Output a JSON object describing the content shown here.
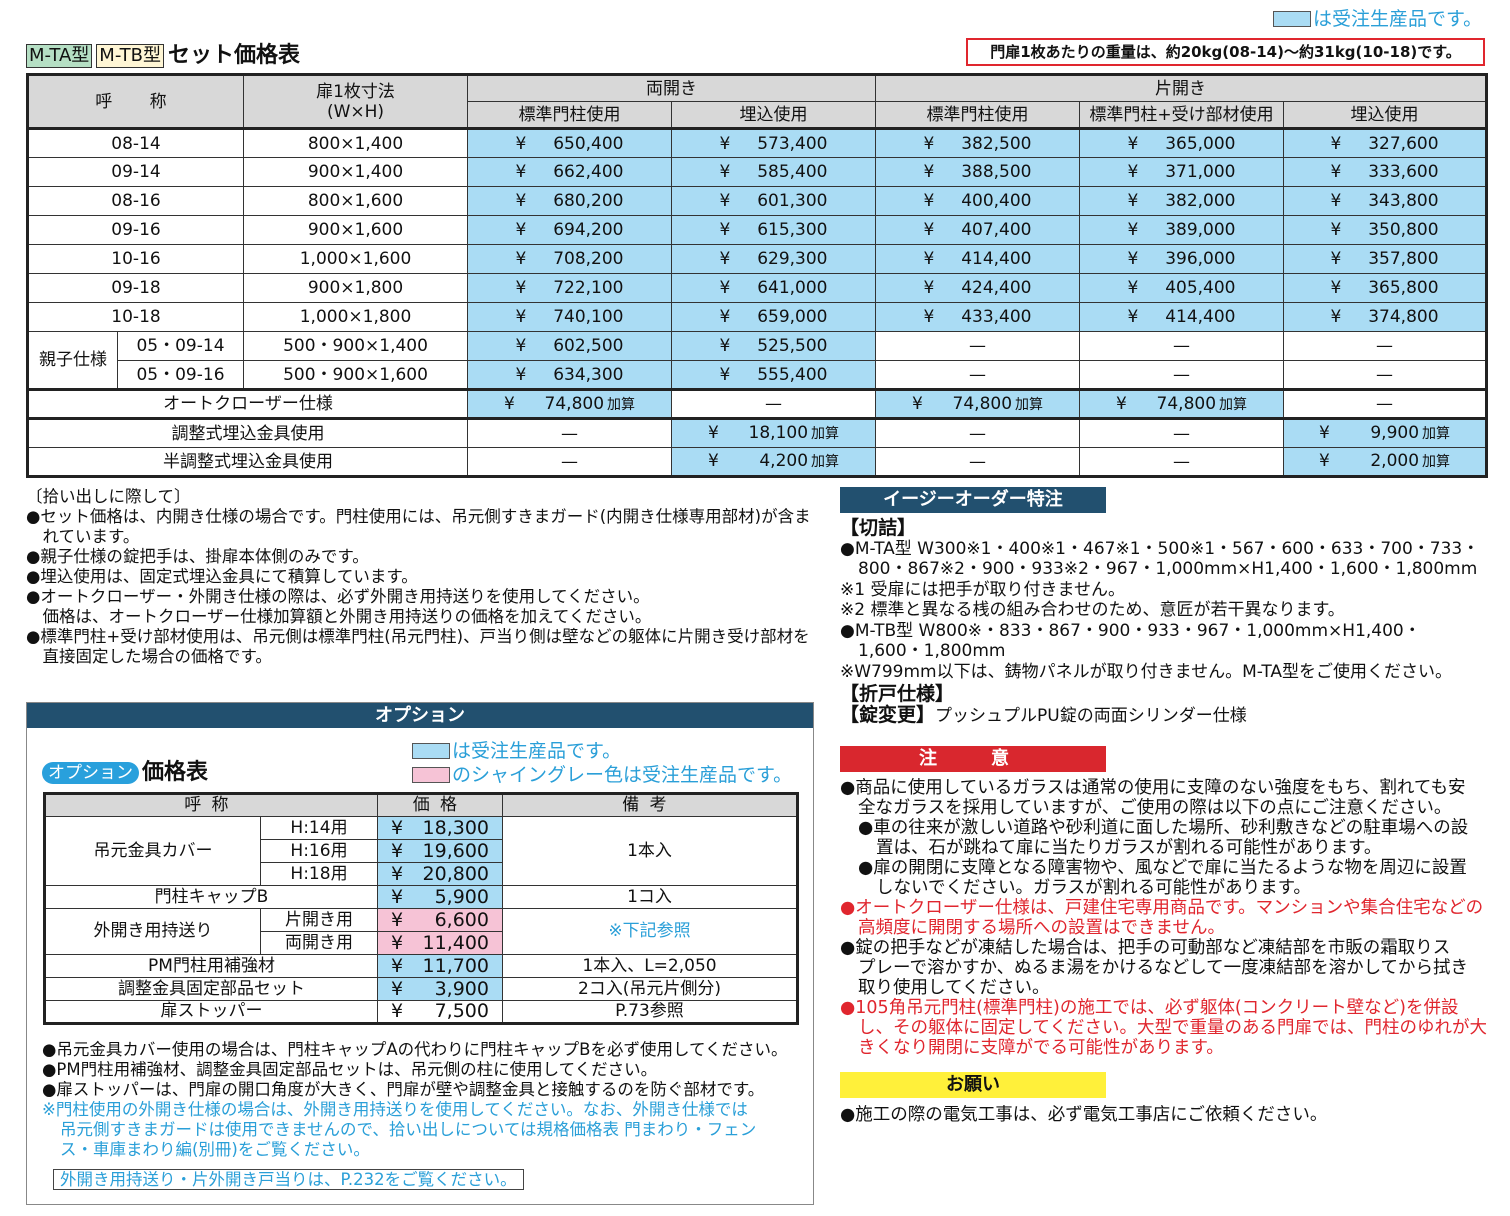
{
  "top_legend": {
    "text": "は受注生産品です。",
    "color": "#aadcf4"
  },
  "title": {
    "badge_a": "M-TA型",
    "badge_b": "M-TB型",
    "text": "セット価格表",
    "badge_a_color": "#b5dfc4",
    "badge_b_color": "#fff6d5"
  },
  "weight_note": "門扉1枚あたりの重量は、約20kg(08-14)～約31kg(10-18)です。",
  "set_table": {
    "headers": {
      "name": "呼　称",
      "size_line1": "扉1枚寸法",
      "size_line2": "(W×H)",
      "double": "両開き",
      "single": "片開き",
      "cols": [
        "標準門柱使用",
        "埋込使用",
        "標準門柱使用",
        "標準門柱+受け部材使用",
        "埋込使用"
      ]
    },
    "rows": [
      {
        "name": "08-14",
        "size": "800×1,400",
        "prices": [
          "650,400",
          "573,400",
          "382,500",
          "365,000",
          "327,600"
        ]
      },
      {
        "name": "09-14",
        "size": "900×1,400",
        "prices": [
          "662,400",
          "585,400",
          "388,500",
          "371,000",
          "333,600"
        ]
      },
      {
        "name": "08-16",
        "size": "800×1,600",
        "prices": [
          "680,200",
          "601,300",
          "400,400",
          "382,000",
          "343,800"
        ]
      },
      {
        "name": "09-16",
        "size": "900×1,600",
        "prices": [
          "694,200",
          "615,300",
          "407,400",
          "389,000",
          "350,800"
        ]
      },
      {
        "name": "10-16",
        "size": "1,000×1,600",
        "prices": [
          "708,200",
          "629,300",
          "414,400",
          "396,000",
          "357,800"
        ]
      },
      {
        "name": "09-18",
        "size": "900×1,800",
        "prices": [
          "722,100",
          "641,000",
          "424,400",
          "405,400",
          "365,800"
        ]
      },
      {
        "name": "10-18",
        "size": "1,000×1,800",
        "prices": [
          "740,100",
          "659,000",
          "433,400",
          "414,400",
          "374,800"
        ]
      }
    ],
    "oyako": {
      "label": "親子仕様",
      "rows": [
        {
          "name": "05・09-14",
          "size": "500・900×1,400",
          "prices": [
            "602,500",
            "525,500",
            "—",
            "—",
            "—"
          ]
        },
        {
          "name": "05・09-16",
          "size": "500・900×1,600",
          "prices": [
            "634,300",
            "555,400",
            "—",
            "—",
            "—"
          ]
        }
      ]
    },
    "extras": [
      {
        "label": "オートクローザー仕様",
        "prices": [
          "74,800",
          "—",
          "74,800",
          "74,800",
          "—"
        ]
      },
      {
        "label": "調整式埋込金具使用",
        "prices": [
          "—",
          "18,100",
          "—",
          "—",
          "9,900"
        ]
      },
      {
        "label": "半調整式埋込金具使用",
        "prices": [
          "—",
          "4,200",
          "—",
          "—",
          "2,000"
        ]
      }
    ],
    "yen": "¥",
    "add_label": "加算",
    "dash": "—"
  },
  "notes_left": {
    "heading": "〔拾い出しに際して〕",
    "items": [
      "●セット価格は、内開き仕様の場合です。門柱使用には、吊元側すきまガード(内開き仕様専用部材)が含まれています。",
      "●親子仕様の錠把手は、掛扉本体側のみです。",
      "●埋込使用は、固定式埋込金具にて積算しています。",
      "●オートクローザー・外開き仕様の際は、必ず外開き用持送りを使用してください。",
      "　価格は、オートクローザー仕様加算額と外開き用持送りの価格を加えてください。",
      "●標準門柱+受け部材使用は、吊元側は標準門柱(吊元門柱)、戸当り側は壁などの躯体に片開き受け部材を直接固定した場合の価格です。"
    ]
  },
  "easy_order": {
    "title": "イージーオーダー特注",
    "kiritsume": "【切詰】",
    "ta_line1": "●M-TA型 W300※1・400※1・467※1・500※1・567・600・633・700・733・",
    "ta_line2": "800・867※2・900・933※2・967・1,000mm×H1,400・1,600・1,800mm",
    "note1": "※1 受扉には把手が取り付きません。",
    "note2": "※2 標準と異なる桟の組み合わせのため、意匠が若干異なります。",
    "tb_line1": "●M-TB型 W800※・833・867・900・933・967・1,000mm×H1,400・",
    "tb_line2": "1,600・1,800mm",
    "note3": "※W799mm以下は、鋳物パネルが取り付きません。M-TA型をご使用ください。",
    "oredo": "【折戸仕様】",
    "lock_head": "【錠変更】",
    "lock_text": "プッシュプルPU錠の両面シリンダー仕様"
  },
  "caution": {
    "title": "注　意",
    "color": "#d9272e",
    "l1": "●商品に使用しているガラスは通常の使用に支障のない強度をもち、割れても安",
    "l2": "全なガラスを採用していますが、ご使用の際は以下の点にご注意ください。",
    "l3": "●車の往来が激しい道路や砂利道に面した場所、砂利敷きなどの駐車場への設",
    "l4": "置は、石が跳ねて扉に当たりガラスが割れる可能性があります。",
    "l5": "●扉の開閉に支障となる障害物や、風などで扉に当たるような物を周辺に設置",
    "l6": "しないでください。ガラスが割れる可能性があります。",
    "r1": "●オートクローザー仕様は、戸建住宅専用商品です。マンションや集合住宅などの",
    "r2": "高頻度に開閉する場所への設置はできません。",
    "l7": "●錠の把手などが凍結した場合は、把手の可動部など凍結部を市販の霜取りス",
    "l8": "プレーで溶かすか、ぬるま湯をかけるなどして一度凍結部を溶かしてから拭き",
    "l9": "取り使用してください。",
    "r3": "●105角吊元門柱(標準門柱)の施工では、必ず躯体(コンクリート壁など)を併設",
    "r4": "し、その躯体に固定してください。大型で重量のある門扉では、門柱のゆれが大",
    "r5": "きくなり開閉に支障がでる可能性があります。"
  },
  "request": {
    "title": "お願い",
    "color": "#fff03a",
    "text": "●施工の際の電気工事は、必ず電気工事店にご依頼ください。"
  },
  "option": {
    "header": "オプション",
    "badge": "オプション",
    "title": "価格表",
    "legend_blue": "は受注生産品です。",
    "legend_pink": "のシャイングレー色は受注生産品です。",
    "pink_color": "#f6c3d6",
    "cols": [
      "呼称",
      "価格",
      "備考"
    ],
    "cover": {
      "name": "吊元金具カバー",
      "subs": [
        "H:14用",
        "H:16用",
        "H:18用"
      ],
      "prices": [
        "18,300",
        "19,600",
        "20,800"
      ],
      "remark": "1本入"
    },
    "cap": {
      "name": "門柱キャップB",
      "price": "5,900",
      "remark": "1コ入"
    },
    "bracket": {
      "name": "外開き用持送り",
      "subs": [
        "片開き用",
        "両開き用"
      ],
      "prices": [
        "6,600",
        "11,400"
      ],
      "remark": "※下記参照"
    },
    "pm": {
      "name": "PM門柱用補強材",
      "price": "11,700",
      "remark": "1本入、L=2,050"
    },
    "adj": {
      "name": "調整金具固定部品セット",
      "price": "3,900",
      "remark": "2コ入(吊元片側分)"
    },
    "stopper": {
      "name": "扉ストッパー",
      "price": "7,500",
      "remark": "P.73参照"
    },
    "notes": [
      "●吊元金具カバー使用の場合は、門柱キャップAの代わりに門柱キャップBを必ず使用してください。",
      "●PM門柱用補強材、調整金具固定部品セットは、吊元側の柱に使用してください。",
      "●扉ストッパーは、門扉の開口角度が大きく、門扉が壁や調整金具と接触するのを防ぐ部材です。"
    ],
    "blue_note": [
      "※門柱使用の外開き仕様の場合は、外開き用持送りを使用してください。なお、外開き仕様では",
      "吊元側すきまガードは使用できませんので、拾い出しについては規格価格表 門まわり・フェン",
      "ス・車庫まわり編(別冊)をご覧ください。"
    ],
    "link": "外開き用持送り・片外開き戸当りは、P.232をご覧ください。"
  }
}
